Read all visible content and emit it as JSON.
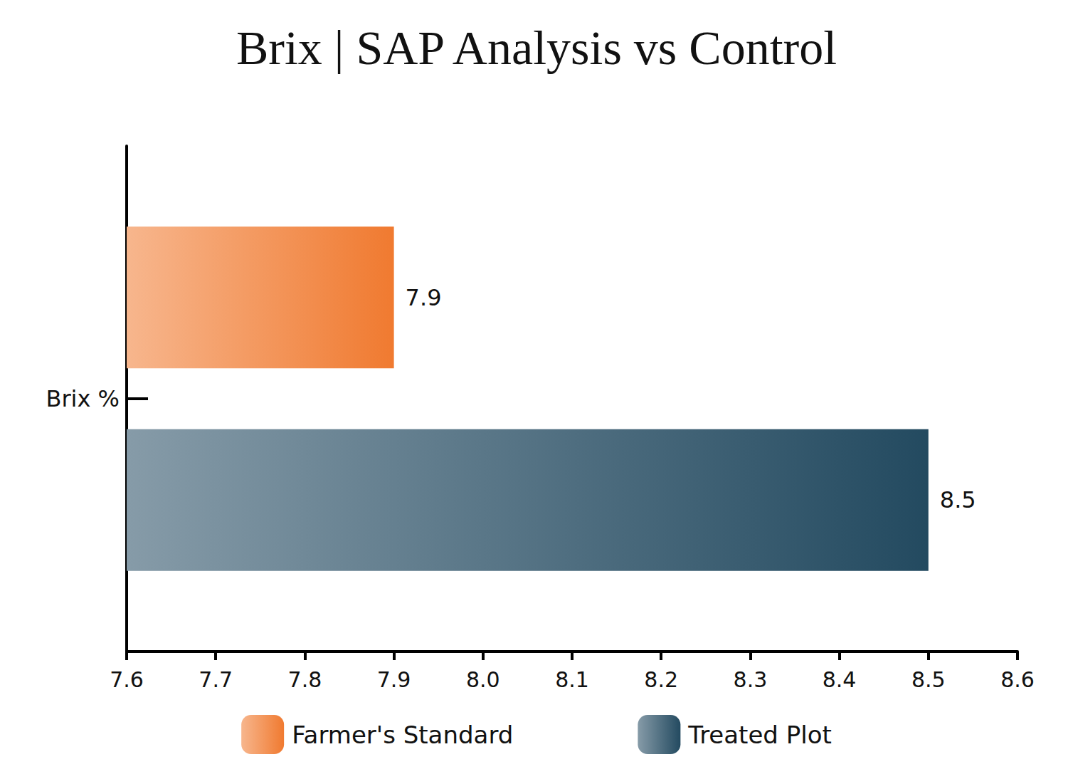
{
  "chart_data": {
    "type": "bar",
    "title": "Brix | SAP Analysis vs Control",
    "orientation": "horizontal",
    "categories": [
      "Brix %"
    ],
    "series": [
      {
        "name": "Farmer's Standard",
        "color": "#f07a30",
        "values": [
          7.9
        ]
      },
      {
        "name": "Treated Plot",
        "color": "#234a60",
        "values": [
          8.5
        ]
      }
    ],
    "xlim": [
      7.6,
      8.6
    ],
    "xticks": [
      7.6,
      7.7,
      7.8,
      7.9,
      {
        "value": 8,
        "label": "8.0"
      },
      8.1,
      8.2,
      8.3,
      8.4,
      8.5,
      8.6
    ],
    "grid": false,
    "data_labels": true,
    "legend": "bottom"
  }
}
